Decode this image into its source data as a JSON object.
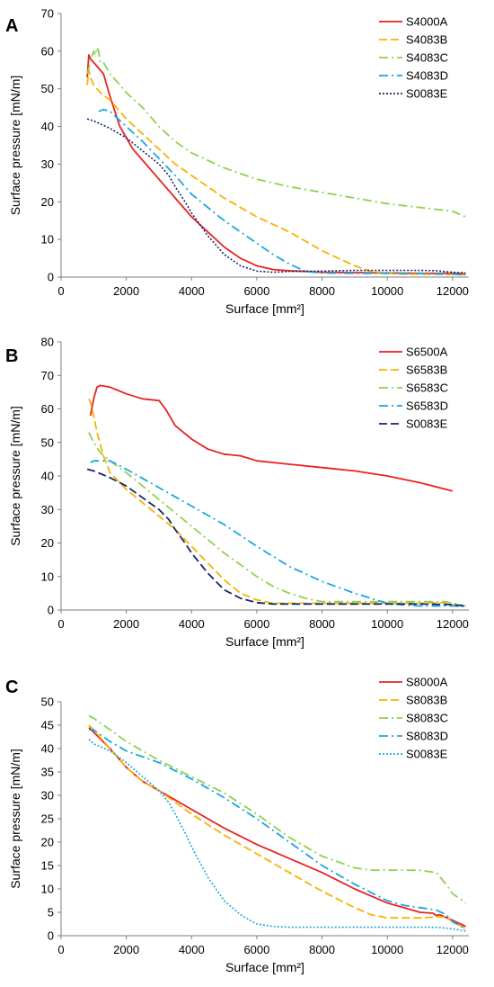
{
  "colors": {
    "red": "#e8231f",
    "orange": "#f9b200",
    "green": "#8fd14f",
    "cyan": "#1ba6e0",
    "navy": "#15266b",
    "axis": "#7f7f7f"
  },
  "chart_data": [
    {
      "type": "line",
      "panel": "A",
      "xlabel": "Surface [mm²]",
      "ylabel": "Surface pressure [mN/m]",
      "xlim": [
        0,
        12500
      ],
      "ylim": [
        0,
        70
      ],
      "xticks": [
        "0",
        "2000",
        "4000",
        "6000",
        "8000",
        "10000",
        "12000"
      ],
      "yticks": [
        "0",
        "10",
        "20",
        "30",
        "40",
        "50",
        "60",
        "70"
      ],
      "legend_position": "top-right",
      "series": [
        {
          "name": "S4000A",
          "color": "#e8231f",
          "dash": "solid",
          "x": [
            800,
            850,
            900,
            1000,
            1100,
            1200,
            1300,
            1500,
            1800,
            2200,
            2600,
            3000,
            3500,
            4000,
            4500,
            5000,
            5500,
            6000,
            6500,
            7000,
            7500,
            8000,
            9000,
            10000,
            11000,
            12000,
            12400
          ],
          "y": [
            53,
            59,
            58,
            57,
            56,
            55,
            54,
            48,
            40,
            34,
            30,
            26,
            21,
            16,
            12,
            8,
            5,
            3,
            2,
            1.7,
            1.5,
            1.3,
            1.2,
            1.1,
            1,
            1,
            0.9
          ]
        },
        {
          "name": "S4083B",
          "color": "#f9b200",
          "dash": "dash",
          "x": [
            800,
            850,
            900,
            1000,
            1200,
            1500,
            2000,
            2500,
            3000,
            3500,
            4000,
            5000,
            6000,
            7000,
            8000,
            9000,
            9500,
            10000,
            10500,
            11000,
            12000,
            12400
          ],
          "y": [
            51,
            55,
            53,
            51,
            49,
            47,
            42,
            38,
            34,
            30,
            27,
            21,
            16,
            12,
            7,
            3,
            1.5,
            1,
            0.8,
            0.8,
            0.7,
            0.6
          ]
        },
        {
          "name": "S4083C",
          "color": "#8fd14f",
          "dash": "dashdot",
          "x": [
            800,
            900,
            1000,
            1050,
            1100,
            1150,
            1200,
            1300,
            1500,
            1800,
            2000,
            2500,
            3000,
            3500,
            4000,
            5000,
            6000,
            7000,
            8000,
            9000,
            10000,
            11000,
            12000,
            12400
          ],
          "y": [
            54,
            57,
            60,
            59,
            61,
            60,
            57,
            57,
            54,
            51,
            49,
            45,
            40,
            36,
            33,
            29,
            26,
            24,
            22.5,
            21,
            19.5,
            18.5,
            17.5,
            16
          ]
        },
        {
          "name": "S4083D",
          "color": "#1ba6e0",
          "dash": "dashdot",
          "x": [
            1150,
            1300,
            1500,
            2000,
            2500,
            3000,
            3500,
            4000,
            4500,
            5000,
            5500,
            6000,
            6500,
            7000,
            7500,
            8000,
            9000,
            10000,
            11000,
            12000,
            12400
          ],
          "y": [
            44,
            44.5,
            44,
            40,
            36,
            31.5,
            27,
            22,
            18.5,
            15,
            12,
            9,
            6,
            3.5,
            1.5,
            1.1,
            1,
            1,
            1,
            0.8,
            0.6
          ]
        },
        {
          "name": "S0083E",
          "color": "#15266b",
          "dash": "dot",
          "x": [
            800,
            1000,
            1500,
            2000,
            2500,
            3000,
            3300,
            3500,
            3800,
            4000,
            4500,
            5000,
            5500,
            6000,
            6500,
            7000,
            8000,
            9000,
            10000,
            11000,
            11500,
            12000,
            12400
          ],
          "y": [
            42,
            41.5,
            39.5,
            37,
            33.5,
            30,
            27,
            24,
            20,
            17,
            11,
            6,
            3,
            1.6,
            1.3,
            1.5,
            1.6,
            1.8,
            1.8,
            1.8,
            1.7,
            1.3,
            1.1
          ]
        }
      ]
    },
    {
      "type": "line",
      "panel": "B",
      "xlabel": "Surface [mm²]",
      "ylabel": "Surface pressure [mN/m]",
      "xlim": [
        0,
        12500
      ],
      "ylim": [
        0,
        80
      ],
      "xticks": [
        "0",
        "2000",
        "4000",
        "6000",
        "8000",
        "10000",
        "12000"
      ],
      "yticks": [
        "0",
        "10",
        "20",
        "30",
        "40",
        "50",
        "60",
        "70",
        "80"
      ],
      "legend_position": "top-right",
      "series": [
        {
          "name": "S6500A",
          "color": "#e8231f",
          "dash": "solid",
          "x": [
            900,
            1000,
            1100,
            1200,
            1500,
            2000,
            2500,
            3000,
            3200,
            3500,
            4000,
            4500,
            5000,
            5500,
            6000,
            7000,
            8000,
            9000,
            10000,
            11000,
            12000
          ],
          "y": [
            58,
            63,
            66.5,
            67,
            66.5,
            64.5,
            63,
            62.5,
            60,
            55,
            51,
            48,
            46.5,
            46,
            44.5,
            43.5,
            42.5,
            41.5,
            40,
            38,
            35.5
          ]
        },
        {
          "name": "S6583B",
          "color": "#f9b200",
          "dash": "dash",
          "x": [
            850,
            900,
            1000,
            1100,
            1300,
            1500,
            2000,
            2500,
            3000,
            3500,
            4000,
            4500,
            5000,
            5500,
            6000,
            6500,
            7000,
            8000,
            9000,
            10000,
            11000,
            11800,
            12000,
            12400
          ],
          "y": [
            63,
            62,
            58,
            53,
            46,
            41,
            36,
            32,
            28,
            24,
            19,
            14,
            9,
            5,
            3,
            2,
            2,
            2,
            2,
            2,
            2,
            2.2,
            1.6,
            1.2
          ]
        },
        {
          "name": "S6583C",
          "color": "#8fd14f",
          "dash": "dashdot",
          "x": [
            850,
            1000,
            1200,
            1500,
            2000,
            2500,
            3000,
            3500,
            4000,
            4500,
            5000,
            5500,
            6000,
            6500,
            7000,
            7500,
            8000,
            9000,
            10000,
            11000,
            11800,
            12000,
            12400
          ],
          "y": [
            53,
            50,
            47,
            44.5,
            41,
            37,
            33,
            29,
            25,
            21,
            17,
            13.5,
            10,
            7,
            5,
            3.5,
            2.5,
            2.5,
            2.5,
            2.5,
            2.5,
            2,
            1.2
          ]
        },
        {
          "name": "S6583D",
          "color": "#1ba6e0",
          "dash": "dashdot",
          "x": [
            900,
            1000,
            1500,
            2000,
            3000,
            4000,
            5000,
            6000,
            7000,
            8000,
            9000,
            10000,
            10500,
            11000,
            12000,
            12400
          ],
          "y": [
            44,
            44.5,
            44.5,
            42,
            36.5,
            31,
            25.5,
            19,
            13,
            8.5,
            5,
            2,
            1.5,
            1.2,
            1.2,
            1
          ]
        },
        {
          "name": "S0083E",
          "color": "#15266b",
          "dash": "dash",
          "x": [
            800,
            1000,
            1500,
            2000,
            2500,
            3000,
            3300,
            3500,
            3800,
            4000,
            4500,
            5000,
            5500,
            6000,
            6500,
            7000,
            8000,
            9000,
            10000,
            11000,
            12000,
            12400
          ],
          "y": [
            42,
            41.5,
            39.5,
            37,
            33.5,
            30,
            27,
            24,
            20,
            17,
            11,
            6,
            3.5,
            2.2,
            1.8,
            1.8,
            1.8,
            1.8,
            1.8,
            1.8,
            1.6,
            1.2
          ]
        }
      ]
    },
    {
      "type": "line",
      "panel": "C",
      "xlabel": "Surface [mm²]",
      "ylabel": "Surface pressure [mN/m]",
      "xlim": [
        0,
        12500
      ],
      "ylim": [
        0,
        50
      ],
      "xticks": [
        "0",
        "2000",
        "4000",
        "6000",
        "8000",
        "10000",
        "12000"
      ],
      "yticks": [
        "0",
        "5",
        "10",
        "15",
        "20",
        "25",
        "30",
        "35",
        "40",
        "45",
        "50"
      ],
      "legend_position": "top-right",
      "series": [
        {
          "name": "S8000A",
          "color": "#e8231f",
          "dash": "solid",
          "x": [
            850,
            1000,
            1500,
            2000,
            2500,
            3000,
            3500,
            4000,
            5000,
            6000,
            7000,
            8000,
            9000,
            10000,
            10500,
            11000,
            11400,
            11500,
            11600,
            12000,
            12400
          ],
          "y": [
            44.5,
            43.5,
            40,
            36,
            33,
            31,
            29,
            27,
            23,
            19.5,
            16.5,
            13.5,
            10,
            7,
            6,
            5,
            4.8,
            4.3,
            4.5,
            3.3,
            2
          ]
        },
        {
          "name": "S8083B",
          "color": "#f9b200",
          "dash": "dash",
          "x": [
            850,
            1000,
            1500,
            2000,
            2500,
            3000,
            3500,
            4000,
            5000,
            6000,
            7000,
            8000,
            9000,
            9500,
            10000,
            11000,
            11500,
            11800,
            12000,
            12400
          ],
          "y": [
            45,
            44,
            40,
            36,
            33,
            31,
            28.5,
            26,
            21.5,
            17.5,
            13.5,
            9.5,
            6,
            4.5,
            3.8,
            3.8,
            4,
            4,
            3,
            1.5
          ]
        },
        {
          "name": "S8083C",
          "color": "#8fd14f",
          "dash": "dashdot",
          "x": [
            850,
            1000,
            1500,
            2000,
            3000,
            4000,
            5000,
            6000,
            7000,
            8000,
            9000,
            9500,
            10000,
            11000,
            11500,
            11800,
            12000,
            12400
          ],
          "y": [
            47,
            46.5,
            44,
            41.5,
            37.5,
            34,
            30.5,
            26,
            21,
            17,
            14.5,
            14,
            14,
            14,
            13.5,
            11,
            9,
            7
          ]
        },
        {
          "name": "S8083D",
          "color": "#1ba6e0",
          "dash": "dashdot",
          "x": [
            850,
            1000,
            1500,
            2000,
            3000,
            4000,
            5000,
            6000,
            7000,
            8000,
            9000,
            10000,
            10500,
            11000,
            11500,
            11800,
            12000,
            12400
          ],
          "y": [
            44,
            44,
            41.5,
            39.5,
            37,
            33.5,
            29.5,
            25,
            20,
            15,
            11,
            7.5,
            6.5,
            6,
            5.5,
            4.5,
            3,
            1.5
          ]
        },
        {
          "name": "S0083E",
          "color": "#1ba6e0",
          "dash": "dot",
          "x": [
            850,
            1000,
            1500,
            2000,
            2500,
            3000,
            3300,
            3500,
            3800,
            4000,
            4500,
            5000,
            5500,
            6000,
            6500,
            7000,
            8000,
            9000,
            10000,
            11000,
            11500,
            12000,
            12400
          ],
          "y": [
            42,
            41,
            39.5,
            37,
            34,
            31,
            28.5,
            26,
            22,
            19,
            12.5,
            7.5,
            4.5,
            2.5,
            2,
            1.8,
            1.8,
            1.8,
            1.8,
            1.8,
            1.8,
            1.5,
            1
          ]
        }
      ]
    }
  ]
}
